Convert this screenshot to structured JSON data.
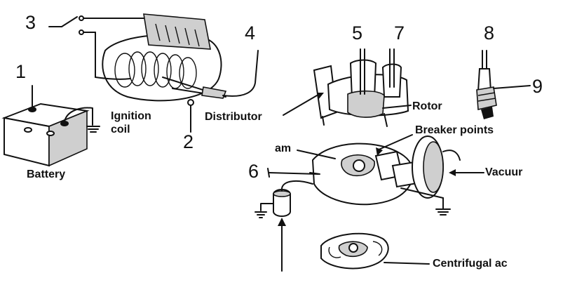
{
  "numbers": {
    "n1": "1",
    "n2": "2",
    "n3": "3",
    "n4": "4",
    "n5": "5",
    "n6": "6",
    "n7": "7",
    "n8": "8",
    "n9": "9"
  },
  "captions": {
    "battery": "Battery",
    "ignition_line1": "Ignition",
    "ignition_line2": "coil",
    "distributor": "Distributor",
    "rotor": "Rotor",
    "breaker_points": "Breaker points",
    "cam": "am",
    "vacuum": "Vacuur",
    "centrifugal": "Centrifugal ac"
  }
}
